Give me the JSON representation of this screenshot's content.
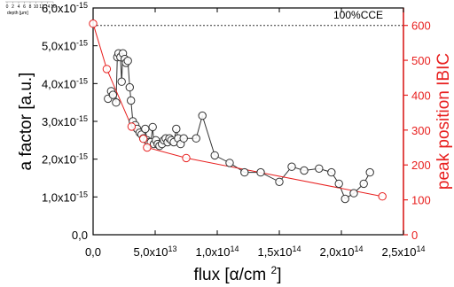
{
  "chart_data": {
    "type": "scatter",
    "title": "",
    "xlabel": "flux [α/cm²]",
    "ylabel_left": "a factor [a.u.]",
    "ylabel_right": "peak position IBIC",
    "xlim": [
      0,
      250000000000000.0
    ],
    "ylim_left": [
      0,
      6e-15
    ],
    "ylim_right": [
      0,
      650
    ],
    "x_ticks": [
      {
        "value": 0,
        "label": "0,0",
        "exp": ""
      },
      {
        "value": 50000000000000.0,
        "label": "5,0x10",
        "exp": "13"
      },
      {
        "value": 100000000000000.0,
        "label": "1,0x10",
        "exp": "14"
      },
      {
        "value": 150000000000000.0,
        "label": "1,5x10",
        "exp": "14"
      },
      {
        "value": 200000000000000.0,
        "label": "2,0x10",
        "exp": "14"
      },
      {
        "value": 250000000000000.0,
        "label": "2,5x10",
        "exp": "14"
      }
    ],
    "y_ticks_left": [
      {
        "value": 0,
        "label": "0,0",
        "exp": ""
      },
      {
        "value": 1e-15,
        "label": "1,0x10",
        "exp": "-15"
      },
      {
        "value": 2e-15,
        "label": "2,0x10",
        "exp": "-15"
      },
      {
        "value": 3e-15,
        "label": "3,0x10",
        "exp": "-15"
      },
      {
        "value": 4e-15,
        "label": "4,0x10",
        "exp": "-15"
      },
      {
        "value": 5e-15,
        "label": "5,0x10",
        "exp": "-15"
      },
      {
        "value": 6e-15,
        "label": "6,0x10",
        "exp": "-15"
      }
    ],
    "y_ticks_right": [
      {
        "value": 0,
        "label": "0"
      },
      {
        "value": 100,
        "label": "100"
      },
      {
        "value": 200,
        "label": "200"
      },
      {
        "value": 300,
        "label": "300"
      },
      {
        "value": 400,
        "label": "400"
      },
      {
        "value": 500,
        "label": "500"
      },
      {
        "value": 600,
        "label": "600"
      }
    ],
    "reference_line": {
      "label": "100%CCE",
      "y_right": 600
    },
    "inset_label": "depth [µm]",
    "inset_ticks": [
      "0",
      "2",
      "4",
      "6",
      "8",
      "10",
      "12",
      "14",
      "16"
    ],
    "series": [
      {
        "axis": "left",
        "color": "#333333",
        "marker": "open-circle",
        "x": [
          12000000000000.0,
          14500000000000.0,
          16000000000000.0,
          18500000000000.0,
          19500000000000.0,
          20500000000000.0,
          22000000000000.0,
          23000000000000.0,
          24000000000000.0,
          25500000000000.0,
          26500000000000.0,
          28000000000000.0,
          29500000000000.0,
          30500000000000.0,
          32000000000000.0,
          34000000000000.0,
          35500000000000.0,
          37500000000000.0,
          39000000000000.0,
          40500000000000.0,
          42000000000000.0,
          43500000000000.0,
          45000000000000.0,
          46500000000000.0,
          48000000000000.0,
          49000000000000.0,
          50500000000000.0,
          52000000000000.0,
          53500000000000.0,
          55500000000000.0,
          57000000000000.0,
          58500000000000.0,
          60000000000000.0,
          61500000000000.0,
          63000000000000.0,
          65000000000000.0,
          67000000000000.0,
          68500000000000.0,
          70500000000000.0,
          73000000000000.0,
          83000000000000.0,
          88000000000000.0,
          98000000000000.0,
          110000000000000.0,
          122000000000000.0,
          135000000000000.0,
          150000000000000.0,
          160000000000000.0,
          170000000000000.0,
          182000000000000.0,
          192000000000000.0,
          198000000000000.0,
          203000000000000.0,
          210000000000000.0,
          218000000000000.0,
          223000000000000.0
        ],
        "y": [
          3.6e-15,
          3.8e-15,
          3.7e-15,
          3.5e-15,
          4.7e-15,
          4.8e-15,
          4.7e-15,
          4.05e-15,
          4.8e-15,
          4.65e-15,
          4.55e-15,
          4.6e-15,
          3.9e-15,
          3.55e-15,
          3e-15,
          2.9e-15,
          2.8e-15,
          2.7e-15,
          2.65e-15,
          2.55e-15,
          2.8e-15,
          2.5e-15,
          2.45e-15,
          2.45e-15,
          2.85e-15,
          2.4e-15,
          2.5e-15,
          2.4e-15,
          2.35e-15,
          2.4e-15,
          2.5e-15,
          2.55e-15,
          2.45e-15,
          2.55e-15,
          2.5e-15,
          2.45e-15,
          2.8e-15,
          2.55e-15,
          2.4e-15,
          2.55e-15,
          2.55e-15,
          3.15e-15,
          2.1e-15,
          1.9e-15,
          1.65e-15,
          1.65e-15,
          1.4e-15,
          1.8e-15,
          1.7e-15,
          1.75e-15,
          1.65e-15,
          1.35e-15,
          9.5e-16,
          1.1e-15,
          1.35e-15,
          1.65e-15
        ]
      },
      {
        "axis": "right",
        "color": "#e8201f",
        "marker": "open-circle",
        "x": [
          0,
          11000000000000.0,
          31000000000000.0,
          40500000000000.0,
          43500000000000.0,
          75000000000000.0,
          233000000000000.0
        ],
        "y": [
          605,
          475,
          310,
          275,
          250,
          220,
          110
        ]
      }
    ]
  }
}
